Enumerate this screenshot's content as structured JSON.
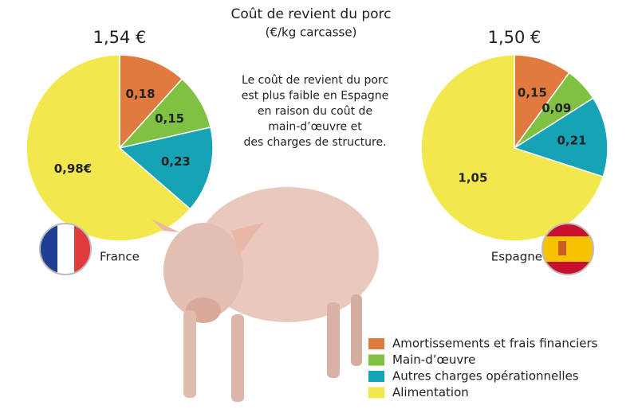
{
  "header": {
    "title": "Coût de revient du porc",
    "subtitle": "(€/kg carcasse)",
    "annotation": [
      "Le coût de revient du porc",
      "est plus faible en Espagne",
      "en raison du coût de",
      "main-d’œuvre et",
      "des charges de structure."
    ]
  },
  "chart_data": [
    {
      "type": "pie",
      "title": "1,54 €",
      "label": "France",
      "categories": [
        "Amortissements et frais financiers",
        "Main-d’œuvre",
        "Autres charges opérationnelles",
        "Alimentation"
      ],
      "colors": [
        "#e07a3e",
        "#7fc242",
        "#16a3b6",
        "#f2e84e"
      ],
      "values": [
        0.18,
        0.15,
        0.23,
        0.98
      ],
      "value_labels": [
        "0,18",
        "0,15",
        "0,23",
        "0,98€"
      ]
    },
    {
      "type": "pie",
      "title": "1,50 €",
      "label": "Espagne",
      "categories": [
        "Amortissements et frais financiers",
        "Main-d’œuvre",
        "Autres charges opérationnelles",
        "Alimentation"
      ],
      "colors": [
        "#e07a3e",
        "#7fc242",
        "#16a3b6",
        "#f2e84e"
      ],
      "values": [
        0.15,
        0.09,
        0.21,
        1.05
      ],
      "value_labels": [
        "0,15",
        "0,09",
        "0,21",
        "1,05"
      ]
    }
  ]
}
